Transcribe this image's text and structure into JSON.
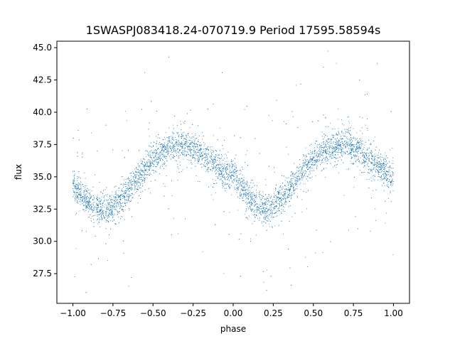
{
  "chart_data": {
    "type": "scatter",
    "title": "1SWASPJ083418.24-070719.9 Period 17595.58594s",
    "xlabel": "phase",
    "ylabel": "flux",
    "xlim": [
      -1.1,
      1.1
    ],
    "ylim": [
      25.2,
      45.5
    ],
    "xticks": [
      -1.0,
      -0.75,
      -0.5,
      -0.25,
      0.0,
      0.25,
      0.5,
      0.75,
      1.0
    ],
    "xtick_labels": [
      "−1.00",
      "−0.75",
      "−0.50",
      "−0.25",
      "0.00",
      "0.25",
      "0.50",
      "0.75",
      "1.00"
    ],
    "yticks": [
      27.5,
      30.0,
      32.5,
      35.0,
      37.5,
      40.0,
      42.5,
      45.0
    ],
    "ytick_labels": [
      "27.5",
      "30.0",
      "32.5",
      "35.0",
      "37.5",
      "40.0",
      "42.5",
      "45.0"
    ],
    "grid": false,
    "point_color": "#1f77b4",
    "series": [
      {
        "x": [
          -1.0,
          -0.9,
          -0.8,
          -0.7,
          -0.6,
          -0.5,
          -0.4,
          -0.3,
          -0.2,
          -0.1,
          0.0,
          0.1,
          0.2,
          0.3,
          0.4,
          0.5,
          0.6,
          0.7,
          0.8,
          0.9,
          1.0
        ],
        "y": [
          34.3,
          33.0,
          32.3,
          33.2,
          34.8,
          36.4,
          37.3,
          37.5,
          36.8,
          35.8,
          35.0,
          33.3,
          32.3,
          33.4,
          34.9,
          36.4,
          37.2,
          37.6,
          36.9,
          35.8,
          34.9
        ]
      }
    ]
  }
}
